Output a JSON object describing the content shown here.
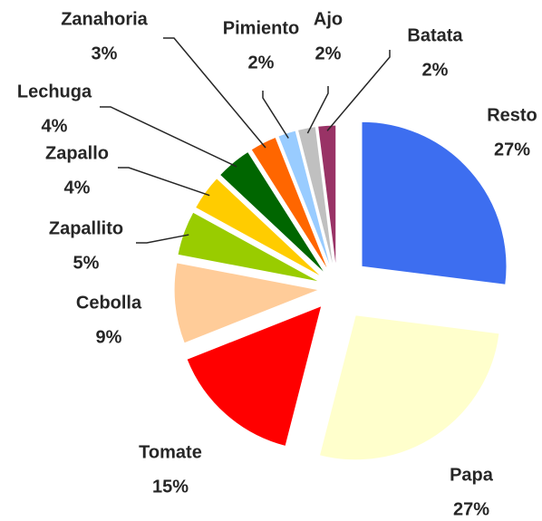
{
  "chart_data": {
    "type": "pie",
    "categories": [
      "Resto",
      "Papa",
      "Tomate",
      "Cebolla",
      "Zapallito",
      "Zapallo",
      "Lechuga",
      "Zanahoria",
      "Pimiento",
      "Ajo",
      "Batata"
    ],
    "values": [
      27,
      27,
      15,
      9,
      5,
      4,
      4,
      3,
      2,
      2,
      2
    ],
    "value_labels": [
      "27%",
      "27%",
      "15%",
      "9%",
      "5%",
      "4%",
      "4%",
      "3%",
      "2%",
      "2%",
      "2%"
    ],
    "colors": [
      "#3d6ef0",
      "#ffffcc",
      "#ff0000",
      "#ffcc99",
      "#99cc00",
      "#ffcc00",
      "#006600",
      "#ff6600",
      "#99ccff",
      "#c0c0c0",
      "#993366"
    ]
  }
}
